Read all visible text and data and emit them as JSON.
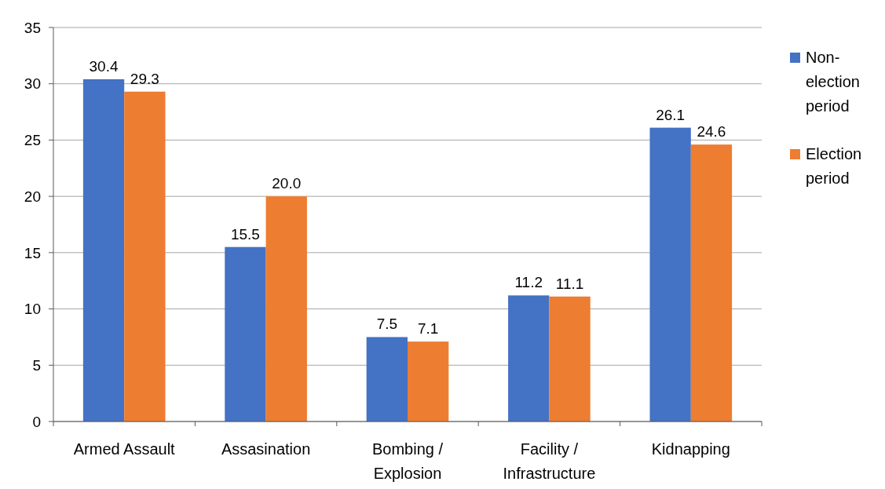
{
  "chart_data": {
    "type": "bar",
    "categories": [
      "Armed Assault",
      "Assasination",
      "Bombing / Explosion",
      "Facility / Infrastructure",
      "Kidnapping"
    ],
    "series": [
      {
        "name": "Non-election period",
        "color": "#4472c4",
        "values": [
          30.4,
          15.5,
          7.5,
          11.2,
          26.1
        ],
        "value_labels": [
          "30.4",
          "15.5",
          "7.5",
          "11.2",
          "26.1"
        ]
      },
      {
        "name": "Election period",
        "color": "#ed7d31",
        "values": [
          29.3,
          20.0,
          7.1,
          11.1,
          24.6
        ],
        "value_labels": [
          "29.3",
          "20.0",
          "7.1",
          "11.1",
          "24.6"
        ]
      }
    ],
    "ylim": [
      0,
      35
    ],
    "yticks": [
      0,
      5,
      10,
      15,
      20,
      25,
      30,
      35
    ],
    "grid": "y",
    "legend": "right"
  }
}
